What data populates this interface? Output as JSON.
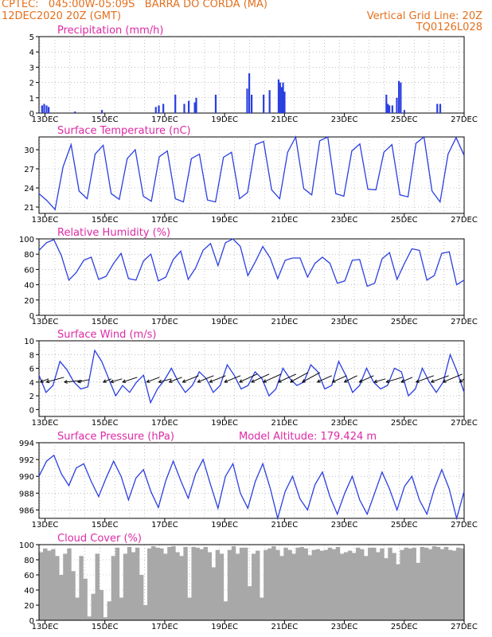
{
  "header": {
    "line1": "CPTEC:   045:00W-05:09S   BARRA DO CORDA (MA)",
    "line2": "12DEC2020 20Z (GMT)",
    "grid_note": "Vertical Grid Line: 20Z",
    "model_code": "TQ0126L028"
  },
  "colors": {
    "line": "#2b3fe0",
    "bar": "#2b3fe0",
    "cloud": "#a8a8a8",
    "title": "#dd2aa5",
    "header": "#e4701e",
    "grid": "#999999"
  },
  "chart_data": [
    {
      "type": "bar",
      "title": "Precipitation (mm/h)",
      "ylim": [
        0,
        5
      ],
      "yticks": [
        "0",
        "1",
        "2",
        "3",
        "4",
        "5"
      ],
      "xticks": [
        "13DEC",
        "15DEC",
        "17DEC",
        "19DEC",
        "21DEC",
        "23DEC",
        "25DEC",
        "27DEC"
      ],
      "x_start_day": 12.8,
      "x_end_day": 27.0,
      "grid": "dotted",
      "events": [
        {
          "day": 12.9,
          "value": 0.5
        },
        {
          "day": 12.97,
          "value": 0.6
        },
        {
          "day": 13.05,
          "value": 0.5
        },
        {
          "day": 13.12,
          "value": 0.4
        },
        {
          "day": 14.0,
          "value": 0.1
        },
        {
          "day": 14.9,
          "value": 0.2
        },
        {
          "day": 16.7,
          "value": 0.4
        },
        {
          "day": 16.8,
          "value": 0.5
        },
        {
          "day": 16.95,
          "value": 0.6
        },
        {
          "day": 17.35,
          "value": 1.2
        },
        {
          "day": 17.65,
          "value": 0.6
        },
        {
          "day": 17.8,
          "value": 0.8
        },
        {
          "day": 18.0,
          "value": 0.7
        },
        {
          "day": 18.05,
          "value": 1.0
        },
        {
          "day": 18.7,
          "value": 1.2
        },
        {
          "day": 19.75,
          "value": 1.6
        },
        {
          "day": 19.82,
          "value": 2.6
        },
        {
          "day": 19.9,
          "value": 1.2
        },
        {
          "day": 20.3,
          "value": 1.2
        },
        {
          "day": 20.5,
          "value": 1.5
        },
        {
          "day": 20.8,
          "value": 2.2
        },
        {
          "day": 20.85,
          "value": 2.0
        },
        {
          "day": 20.9,
          "value": 1.7
        },
        {
          "day": 20.95,
          "value": 2.0
        },
        {
          "day": 21.0,
          "value": 1.4
        },
        {
          "day": 24.4,
          "value": 1.2
        },
        {
          "day": 24.45,
          "value": 0.6
        },
        {
          "day": 24.5,
          "value": 0.5
        },
        {
          "day": 24.6,
          "value": 0.5
        },
        {
          "day": 24.75,
          "value": 1.0
        },
        {
          "day": 24.82,
          "value": 2.1
        },
        {
          "day": 24.88,
          "value": 2.0
        },
        {
          "day": 25.0,
          "value": 0.2
        },
        {
          "day": 26.1,
          "value": 0.6
        },
        {
          "day": 26.2,
          "value": 0.6
        }
      ]
    },
    {
      "type": "line",
      "title": "Surface Temperature (nC)",
      "ylim": [
        20,
        32
      ],
      "yticks": [
        "21",
        "24",
        "27",
        "30"
      ],
      "xticks": [
        "13DEC",
        "15DEC",
        "17DEC",
        "19DEC",
        "21DEC",
        "23DEC",
        "25DEC",
        "27DEC"
      ],
      "x_start_day": 12.8,
      "x_end_day": 27.0,
      "grid": "dotted",
      "series": [
        {
          "name": "",
          "values": [
            23.1,
            22.0,
            20.6,
            27.3,
            30.8,
            23.5,
            22.3,
            29.3,
            30.7,
            23.1,
            22.2,
            28.6,
            30.0,
            22.7,
            21.9,
            28.9,
            29.8,
            22.3,
            21.8,
            28.6,
            29.3,
            22.1,
            21.8,
            28.8,
            29.6,
            22.3,
            23.3,
            30.8,
            31.3,
            23.7,
            22.3,
            29.6,
            32.0,
            23.9,
            22.9,
            31.4,
            32.0,
            23.1,
            22.7,
            29.8,
            30.9,
            23.8,
            23.7,
            29.6,
            30.8,
            22.9,
            22.6,
            31.0,
            32.0,
            23.5,
            21.8,
            29.3,
            31.9,
            29.1
          ]
        }
      ]
    },
    {
      "type": "line",
      "title": "Relative Humidity (%)",
      "ylim": [
        0,
        100
      ],
      "yticks": [
        "0",
        "20",
        "40",
        "60",
        "80",
        "100"
      ],
      "xticks": [
        "13DEC",
        "15DEC",
        "17DEC",
        "19DEC",
        "21DEC",
        "23DEC",
        "25DEC",
        "27DEC"
      ],
      "x_start_day": 12.8,
      "x_end_day": 27.0,
      "grid": "dotted",
      "series": [
        {
          "name": "",
          "values": [
            85,
            95,
            99,
            78,
            46,
            56,
            72,
            76,
            47,
            51,
            68,
            81,
            48,
            46,
            71,
            80,
            45,
            50,
            73,
            84,
            47,
            62,
            85,
            94,
            65,
            95,
            100,
            90,
            52,
            70,
            90,
            75,
            48,
            72,
            75,
            75,
            50,
            68,
            76,
            68,
            42,
            45,
            72,
            73,
            38,
            42,
            74,
            82,
            47,
            68,
            87,
            85,
            46,
            52,
            81,
            83,
            40,
            46
          ]
        }
      ]
    },
    {
      "type": "line",
      "title": "Surface Wind (m/s)",
      "ylim": [
        -1,
        10
      ],
      "yticks": [
        "0",
        "2",
        "4",
        "6",
        "8",
        "10"
      ],
      "xticks": [
        "13DEC",
        "15DEC",
        "17DEC",
        "19DEC",
        "21DEC",
        "23DEC",
        "25DEC",
        "27DEC"
      ],
      "x_start_day": 12.8,
      "x_end_day": 27.0,
      "grid": "dotted",
      "series": [
        {
          "name": "",
          "values": [
            5.0,
            2.5,
            3.5,
            7.0,
            5.8,
            4.0,
            3.0,
            3.3,
            8.6,
            7.0,
            4.5,
            2.0,
            3.5,
            2.5,
            4.0,
            5.0,
            1.0,
            3.0,
            4.3,
            6.0,
            4.0,
            2.5,
            3.5,
            5.5,
            4.5,
            2.5,
            3.5,
            6.5,
            5.0,
            3.0,
            3.5,
            5.5,
            4.5,
            2.0,
            3.0,
            6.0,
            4.5,
            3.5,
            4.0,
            6.5,
            5.5,
            3.0,
            3.5,
            7.0,
            5.0,
            2.5,
            3.5,
            6.0,
            4.0,
            3.0,
            3.5,
            6.0,
            5.5,
            2.0,
            3.0,
            6.0,
            4.0,
            2.5,
            4.0,
            8.0,
            5.5,
            2.5
          ]
        }
      ],
      "vectors": [
        {
          "day": 12.85,
          "dx": 10,
          "dy": 4
        },
        {
          "day": 13.05,
          "dx": 22,
          "dy": 6
        },
        {
          "day": 13.65,
          "dx": 22,
          "dy": 2
        },
        {
          "day": 14.1,
          "dx": 14,
          "dy": 3
        },
        {
          "day": 14.95,
          "dx": 10,
          "dy": 4
        },
        {
          "day": 15.2,
          "dx": 14,
          "dy": 4
        },
        {
          "day": 15.6,
          "dx": 18,
          "dy": 6
        },
        {
          "day": 16.4,
          "dx": 16,
          "dy": 6
        },
        {
          "day": 16.8,
          "dx": 16,
          "dy": 4
        },
        {
          "day": 17.15,
          "dx": 16,
          "dy": 6
        },
        {
          "day": 17.6,
          "dx": 20,
          "dy": 8
        },
        {
          "day": 18.1,
          "dx": 20,
          "dy": 8
        },
        {
          "day": 18.5,
          "dx": 20,
          "dy": 8
        },
        {
          "day": 19.0,
          "dx": 20,
          "dy": 8
        },
        {
          "day": 19.5,
          "dx": 22,
          "dy": 10
        },
        {
          "day": 19.9,
          "dx": 22,
          "dy": 10
        },
        {
          "day": 20.3,
          "dx": 22,
          "dy": 10
        },
        {
          "day": 20.8,
          "dx": 22,
          "dy": 10
        },
        {
          "day": 21.2,
          "dx": 22,
          "dy": 12
        },
        {
          "day": 21.6,
          "dx": 22,
          "dy": 12
        },
        {
          "day": 22.1,
          "dx": 18,
          "dy": 8
        },
        {
          "day": 22.6,
          "dx": 18,
          "dy": 8
        },
        {
          "day": 23.0,
          "dx": 16,
          "dy": 8
        },
        {
          "day": 23.5,
          "dx": 18,
          "dy": 8
        },
        {
          "day": 24.0,
          "dx": 14,
          "dy": 4
        },
        {
          "day": 24.4,
          "dx": 20,
          "dy": 6
        },
        {
          "day": 24.9,
          "dx": 14,
          "dy": 6
        },
        {
          "day": 25.4,
          "dx": 22,
          "dy": 8
        },
        {
          "day": 25.9,
          "dx": 22,
          "dy": 8
        },
        {
          "day": 26.3,
          "dx": 24,
          "dy": 10
        },
        {
          "day": 26.85,
          "dx": 6,
          "dy": 4
        }
      ]
    },
    {
      "type": "line",
      "title": "Surface Pressure (hPa)",
      "annotation": "Model Altitude: 179.424  m",
      "ylim": [
        985,
        994
      ],
      "yticks": [
        "986",
        "988",
        "990",
        "992",
        "994"
      ],
      "xticks": [
        "13DEC",
        "15DEC",
        "17DEC",
        "19DEC",
        "21DEC",
        "23DEC",
        "25DEC",
        "27DEC"
      ],
      "x_start_day": 12.8,
      "x_end_day": 27.0,
      "grid": "dotted",
      "series": [
        {
          "name": "",
          "values": [
            990.0,
            991.8,
            992.5,
            990.3,
            988.9,
            991.0,
            991.5,
            989.4,
            987.6,
            989.8,
            991.8,
            990.0,
            987.2,
            989.8,
            990.8,
            988.2,
            986.3,
            989.5,
            991.8,
            989.5,
            987.4,
            990.3,
            992.0,
            989.0,
            986.2,
            990.0,
            991.5,
            988.0,
            986.2,
            989.4,
            991.5,
            988.6,
            985.0,
            988.2,
            990.0,
            987.3,
            986.0,
            989.0,
            990.5,
            987.6,
            985.5,
            988.0,
            990.0,
            987.2,
            985.5,
            988.0,
            990.5,
            988.5,
            986.0,
            988.8,
            990.0,
            987.2,
            985.5,
            988.5,
            990.8,
            988.5,
            985.0,
            988.2
          ]
        }
      ]
    },
    {
      "type": "area",
      "title": "Cloud Cover (%)",
      "ylim": [
        0,
        100
      ],
      "yticks": [
        "0",
        "20",
        "40",
        "60",
        "80",
        "100"
      ],
      "xticks": [
        "13DEC",
        "15DEC",
        "17DEC",
        "19DEC",
        "21DEC",
        "23DEC",
        "25DEC",
        "27DEC"
      ],
      "x_start_day": 12.8,
      "x_end_day": 27.0,
      "grid": "dotted",
      "series": [
        {
          "name": "",
          "values": [
            90,
            95,
            92,
            94,
            85,
            60,
            88,
            95,
            65,
            30,
            85,
            55,
            5,
            35,
            88,
            40,
            4,
            25,
            85,
            96,
            30,
            88,
            97,
            90,
            96,
            60,
            20,
            95,
            98,
            96,
            95,
            88,
            97,
            98,
            90,
            85,
            97,
            30,
            97,
            96,
            94,
            97,
            90,
            70,
            93,
            88,
            25,
            93,
            98,
            88,
            96,
            96,
            45,
            88,
            92,
            30,
            93,
            95,
            98,
            93,
            85,
            96,
            93,
            88,
            96,
            97,
            95,
            86,
            93,
            94,
            92,
            93,
            96,
            94,
            97,
            88,
            90,
            92,
            89,
            96,
            94,
            85,
            96,
            96,
            90,
            95,
            82,
            96,
            89,
            74,
            93,
            96,
            95,
            96,
            76,
            97,
            96,
            94,
            98,
            97,
            94,
            97,
            93,
            92,
            96,
            95
          ]
        }
      ]
    }
  ]
}
